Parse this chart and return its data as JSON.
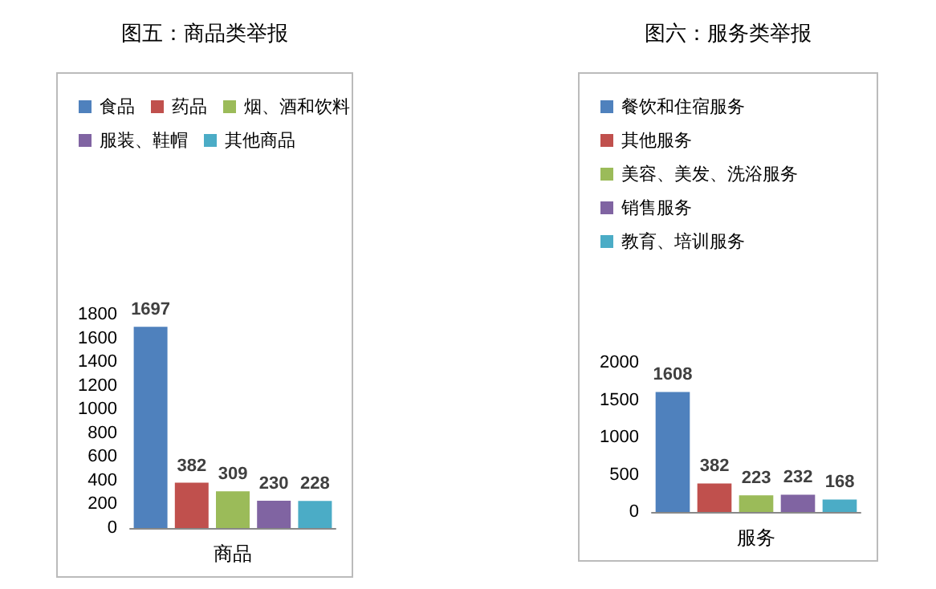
{
  "chart_data": [
    {
      "type": "bar",
      "title": "图五：商品类举报",
      "xlabel": "商品",
      "categories": [
        null,
        null,
        null,
        null,
        null
      ],
      "stacked": true,
      "series": [
        {
          "name": "食品",
          "color": "#4f81bd",
          "values": [
            1697,
            null,
            null,
            null,
            null
          ]
        },
        {
          "name": "药品",
          "color": "#c0504d",
          "values": [
            null,
            382,
            null,
            null,
            null
          ]
        },
        {
          "name": "烟、酒和饮料",
          "color": "#9bbb59",
          "values": [
            null,
            null,
            309,
            null,
            null
          ]
        },
        {
          "name": "服装、鞋帽",
          "color": "#8064a2",
          "values": [
            null,
            null,
            null,
            230,
            null
          ]
        },
        {
          "name": "其他商品",
          "color": "#4bacc6",
          "values": [
            null,
            null,
            null,
            null,
            228
          ]
        }
      ],
      "ylim": [
        0,
        1800
      ],
      "yticks": [
        0,
        200,
        400,
        600,
        800,
        1000,
        1200,
        1400,
        1600,
        1800
      ],
      "grid": false,
      "legend": "top",
      "data_labels": true
    },
    {
      "type": "bar",
      "title": "图六：服务类举报",
      "xlabel": "服务",
      "categories": [
        null,
        null,
        null,
        null,
        null
      ],
      "stacked": true,
      "series": [
        {
          "name": "餐饮和住宿服务",
          "color": "#4f81bd",
          "values": [
            1608,
            null,
            null,
            null,
            null
          ]
        },
        {
          "name": "其他服务",
          "color": "#c0504d",
          "values": [
            null,
            382,
            null,
            null,
            null
          ]
        },
        {
          "name": "美容、美发、洗浴服务",
          "color": "#9bbb59",
          "values": [
            null,
            null,
            223,
            null,
            null
          ]
        },
        {
          "name": "销售服务",
          "color": "#8064a2",
          "values": [
            null,
            null,
            null,
            232,
            null
          ]
        },
        {
          "name": "教育、培训服务",
          "color": "#4bacc6",
          "values": [
            null,
            null,
            null,
            null,
            168
          ]
        }
      ],
      "ylim": [
        0,
        2000
      ],
      "yticks": [
        0,
        500,
        1000,
        1500,
        2000
      ],
      "grid": false,
      "legend": "top",
      "data_labels": true
    }
  ]
}
